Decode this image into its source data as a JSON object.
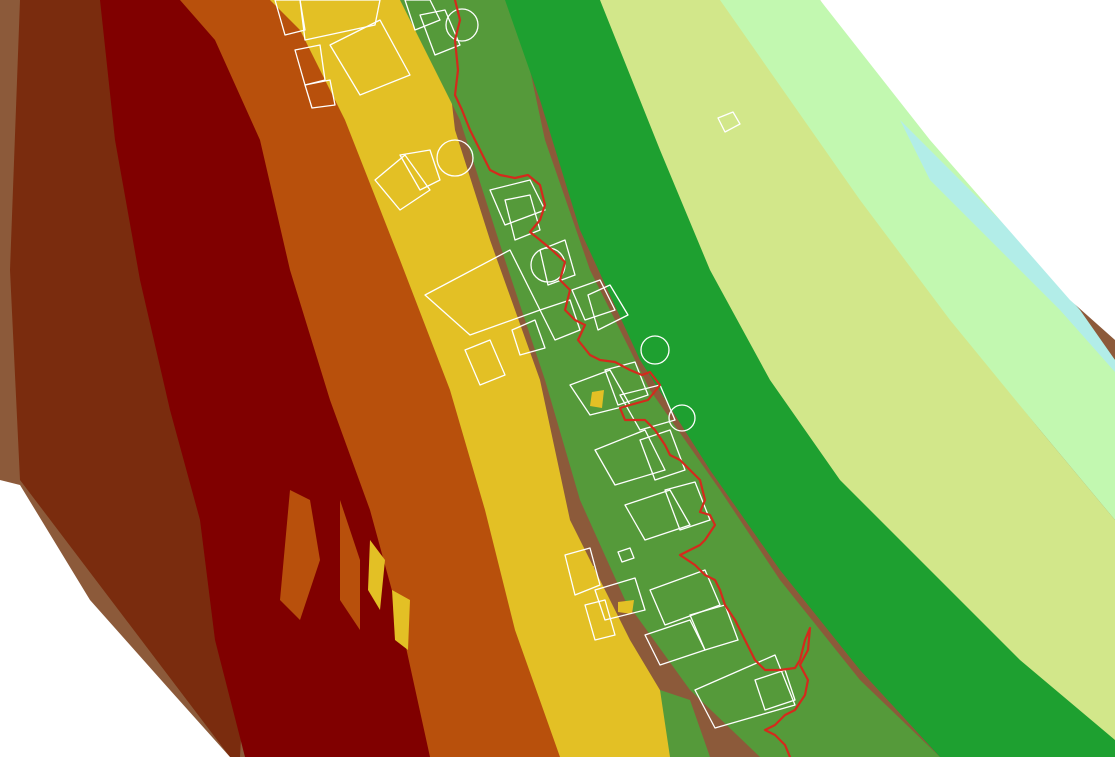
{
  "map": {
    "background_color": "#ffffff",
    "elevation_bands": [
      {
        "name": "band-1-brown-light",
        "color": "#8c5a3a"
      },
      {
        "name": "band-2-brown-dark",
        "color": "#7a2c0e"
      },
      {
        "name": "band-3-maroon",
        "color": "#800000"
      },
      {
        "name": "band-4-orange",
        "color": "#b8500c"
      },
      {
        "name": "band-5-gold",
        "color": "#e3c025"
      },
      {
        "name": "band-6-olive-green",
        "color": "#559a3a"
      },
      {
        "name": "band-7-green",
        "color": "#1ea030"
      },
      {
        "name": "band-8-yellow-green",
        "color": "#d2e78a"
      },
      {
        "name": "band-9-pale-green",
        "color": "#c2f8b0"
      },
      {
        "name": "band-10-cyan",
        "color": "#b2ede8"
      }
    ],
    "shoreline_color": "#d42a1c",
    "building_outline_color": "#ffffff"
  }
}
